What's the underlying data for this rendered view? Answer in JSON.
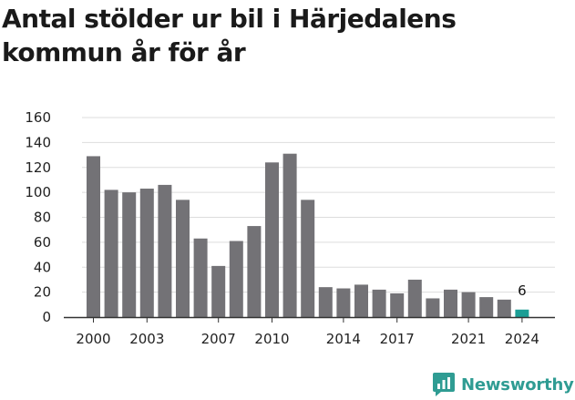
{
  "title": "Antal stölder ur bil i Härjedalens kommun år för år",
  "logo": {
    "text": "Newsworthy",
    "icon": "newsworthy-logo-icon",
    "color": "#2f9c93"
  },
  "chart_data": {
    "type": "bar",
    "title": "Antal stölder ur bil i Härjedalens kommun år för år",
    "xlabel": "",
    "ylabel": "",
    "ylim": [
      0,
      160
    ],
    "yticks": [
      0,
      20,
      40,
      60,
      80,
      100,
      120,
      140,
      160
    ],
    "xticks": [
      "2000",
      "2003",
      "2007",
      "2010",
      "2014",
      "2017",
      "2021",
      "2024"
    ],
    "grid": true,
    "legend": "none",
    "colors": {
      "bar": "#737276",
      "highlight": "#1b9e95",
      "grid": "#dddddd",
      "axis": "#333333"
    },
    "categories": [
      "2000",
      "2001",
      "2002",
      "2003",
      "2004",
      "2005",
      "2006",
      "2007",
      "2008",
      "2009",
      "2010",
      "2011",
      "2012",
      "2013",
      "2014",
      "2015",
      "2016",
      "2017",
      "2018",
      "2019",
      "2020",
      "2021",
      "2022",
      "2023",
      "2024"
    ],
    "values": [
      129,
      102,
      100,
      103,
      106,
      94,
      63,
      41,
      61,
      73,
      124,
      131,
      94,
      24,
      23,
      26,
      22,
      19,
      30,
      15,
      22,
      20,
      16,
      14,
      6
    ],
    "highlight_index": 24,
    "annotations": [
      {
        "category": "2024",
        "text": "6"
      }
    ]
  }
}
